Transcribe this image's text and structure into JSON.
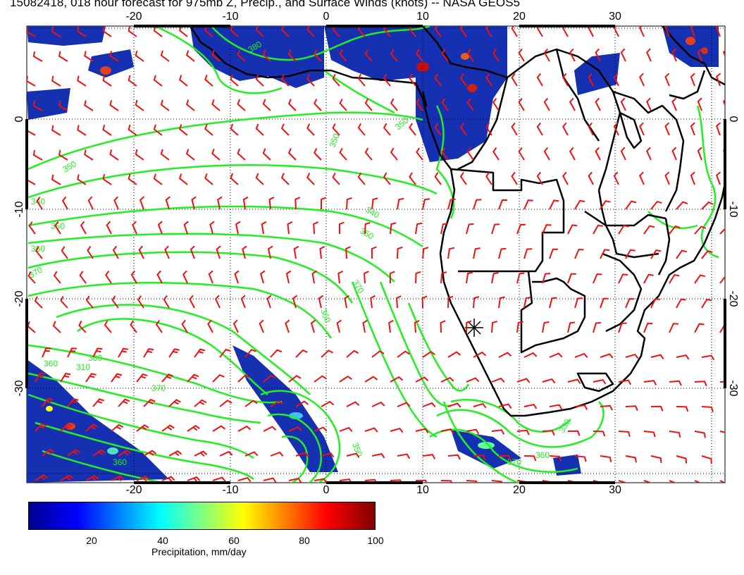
{
  "title": "15082418, 018 hour forecast for 975mb Z, Precip., and Surface Winds (knots) -- NASA GEOS5",
  "axes": {
    "lon_ticks_top": [
      "-20",
      "-10",
      "0",
      "10",
      "20",
      "30"
    ],
    "lon_ticks_bottom": [
      "-20",
      "-10",
      "0",
      "10",
      "20",
      "30"
    ],
    "lat_ticks_left": [
      "0",
      "-10",
      "-20",
      "-30"
    ],
    "lat_ticks_right": [
      "0",
      "-10",
      "-20",
      "-30"
    ]
  },
  "contour_labels": [
    "380",
    "350",
    "350",
    "350",
    "340",
    "350",
    "360",
    "370",
    "340",
    "350",
    "370",
    "360",
    "380",
    "360",
    "310",
    "370",
    "350",
    "360",
    "370",
    "330",
    "360"
  ],
  "colorbar": {
    "ticks": [
      "20",
      "40",
      "60",
      "80",
      "100"
    ],
    "label": "Precipitation, mm/day"
  },
  "colors": {
    "contours": "#22ee22",
    "wind_barbs": "#ee1111",
    "coastlines": "#000000",
    "precip_low": "#00008f",
    "precip_high": "#800000"
  }
}
